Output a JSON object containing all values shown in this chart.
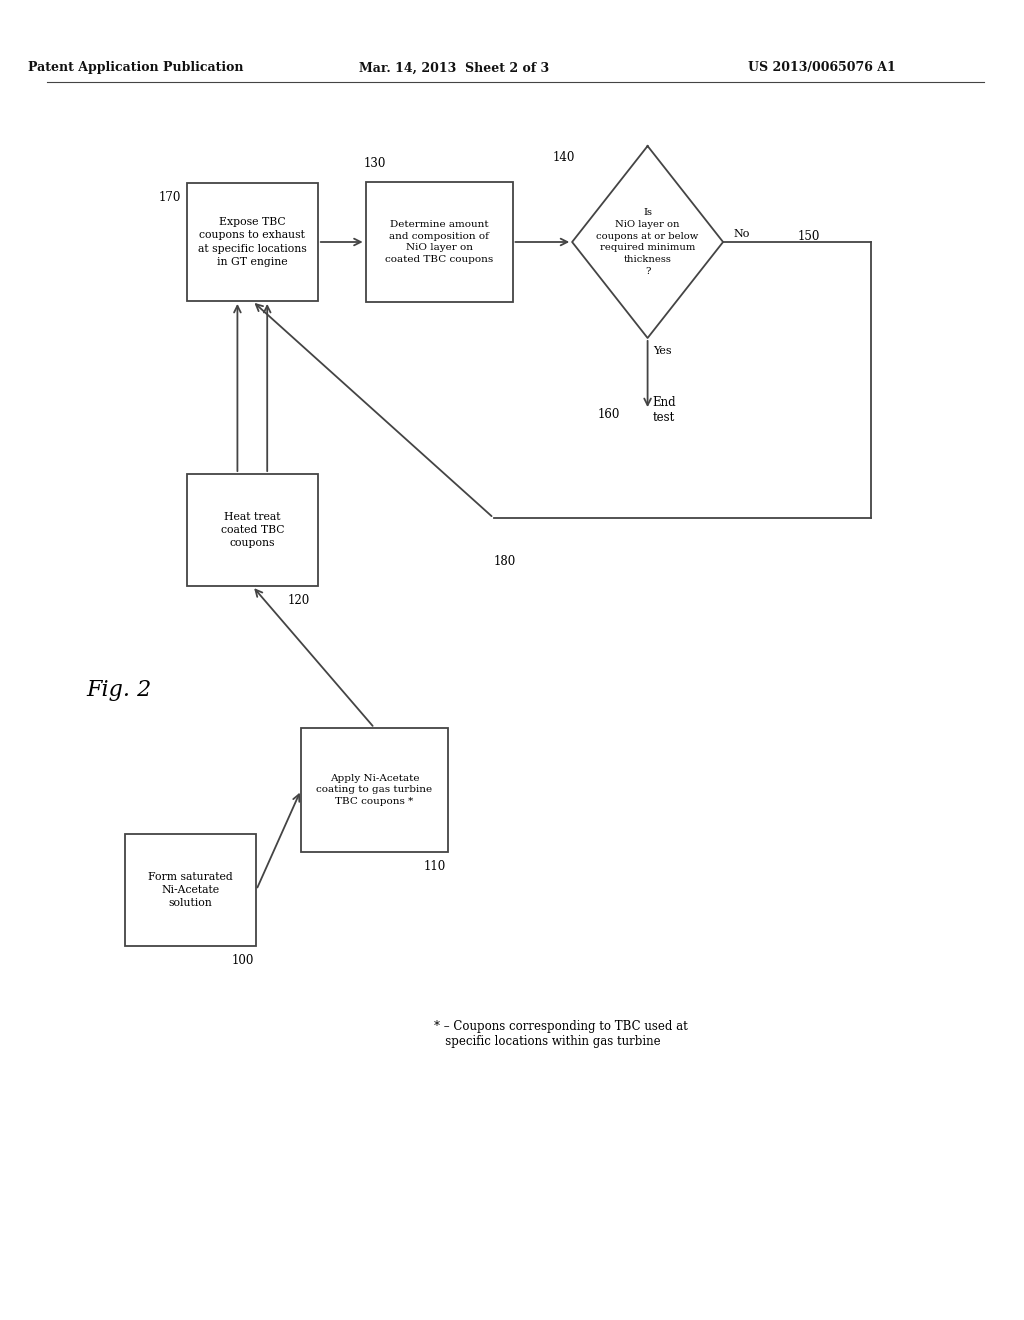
{
  "header_left": "Patent Application Publication",
  "header_center": "Mar. 14, 2013  Sheet 2 of 3",
  "header_right": "US 2013/0065076 A1",
  "fig_label": "Fig. 2",
  "bg_color": "#ffffff",
  "line_color": "#444444",
  "footnote": "* – Coupons corresponding to TBC used at\n   specific locations within gas turbine"
}
